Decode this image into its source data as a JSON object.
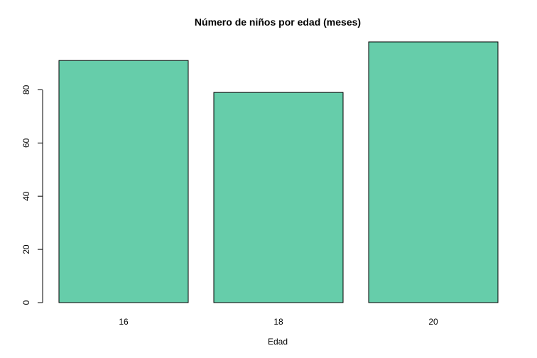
{
  "chart_data": {
    "type": "bar",
    "title": "Número de niños por edad (meses)",
    "xlabel": "Edad",
    "ylabel": "",
    "categories": [
      "16",
      "18",
      "20"
    ],
    "values": [
      91,
      79,
      98
    ],
    "ylim": [
      0,
      98
    ],
    "yticks": [
      0,
      20,
      40,
      60,
      80
    ],
    "bar_color": "#66CDAA",
    "grid": false
  }
}
